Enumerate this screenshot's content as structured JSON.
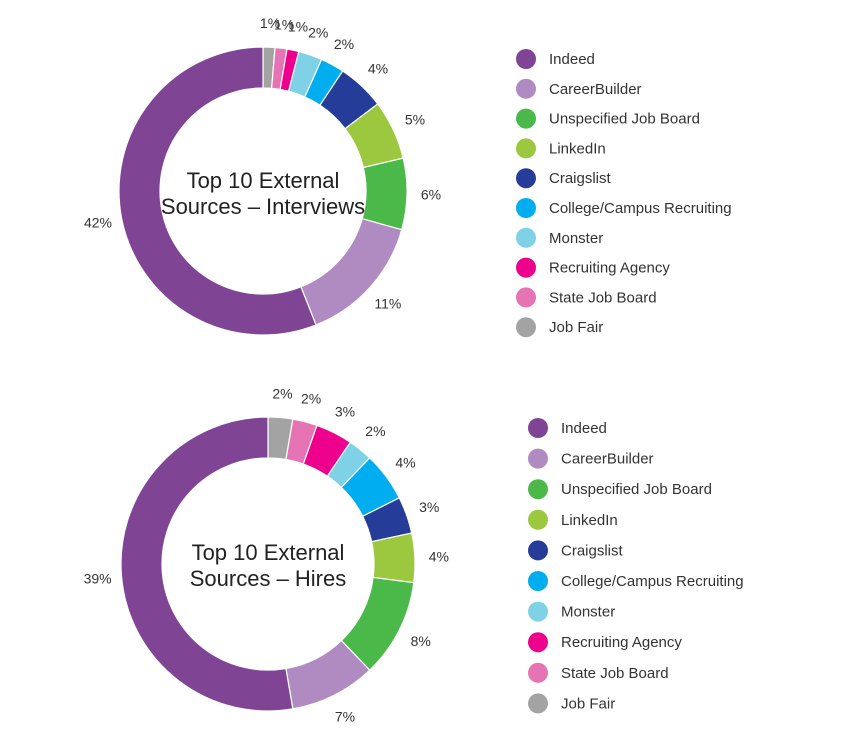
{
  "chart_data": [
    {
      "type": "pie",
      "title_lines": [
        "Top 10 External",
        "Sources – Interviews"
      ],
      "categories": [
        "Indeed",
        "CareerBuilder",
        "Unspecified Job Board",
        "LinkedIn",
        "Craigslist",
        "College/Campus Recruiting",
        "Monster",
        "Recruiting Agency",
        "State Job Board",
        "Job Fair"
      ],
      "values": [
        42,
        11,
        6,
        5,
        4,
        2,
        2,
        1,
        1,
        1
      ],
      "labels": [
        "42%",
        "11%",
        "6%",
        "5%",
        "4%",
        "2%",
        "2%",
        "1%",
        "1%",
        "1%"
      ],
      "legend": "right",
      "donut": true
    },
    {
      "type": "pie",
      "title_lines": [
        "Top 10 External",
        "Sources – Hires"
      ],
      "categories": [
        "Indeed",
        "CareerBuilder",
        "Unspecified Job Board",
        "LinkedIn",
        "Craigslist",
        "College/Campus Recruiting",
        "Monster",
        "Recruiting Agency",
        "State Job Board",
        "Job Fair"
      ],
      "values": [
        39,
        7,
        8,
        4,
        3,
        4,
        2,
        3,
        2,
        2
      ],
      "labels": [
        "39%",
        "7%",
        "8%",
        "4%",
        "3%",
        "4%",
        "2%",
        "3%",
        "2%",
        "2%"
      ],
      "legend": "right",
      "donut": true
    }
  ],
  "colors": {
    "Indeed": "#7f4594",
    "CareerBuilder": "#b08bc1",
    "Unspecified Job Board": "#4bb84a",
    "LinkedIn": "#9cc840",
    "Craigslist": "#253d98",
    "College/Campus Recruiting": "#00aeef",
    "Monster": "#7fd1e6",
    "Recruiting Agency": "#ec008c",
    "State Job Board": "#e673b3",
    "Job Fair": "#a3a3a3"
  }
}
